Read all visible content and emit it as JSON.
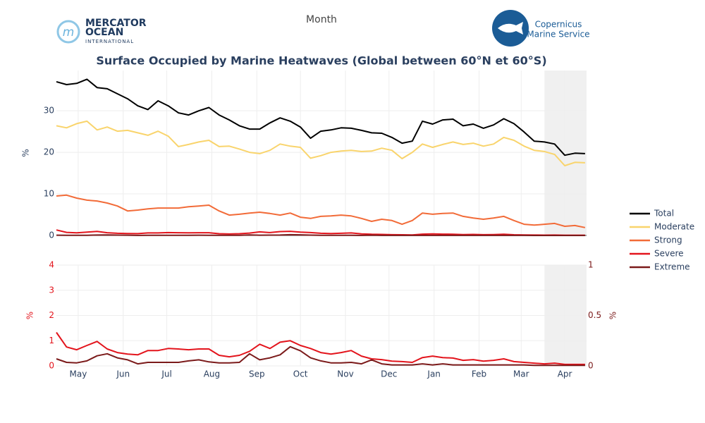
{
  "chart_data": {
    "type": "line",
    "title": "Surface Occupied by Marine Heatwaves (Global between 60°N et 60°S)",
    "xlabel": "Month",
    "x": [
      0,
      7,
      14,
      21,
      28,
      35,
      42,
      49,
      56,
      63,
      70,
      77,
      84,
      91,
      98,
      105,
      112,
      119,
      126,
      133,
      140,
      147,
      154,
      161,
      168,
      175,
      182,
      189,
      196,
      203,
      210,
      217,
      224,
      231,
      238,
      245,
      252,
      259,
      266,
      273,
      280,
      287,
      294,
      301,
      308,
      315,
      322,
      329,
      336,
      343,
      350,
      357,
      364
    ],
    "xlim": [
      0,
      365
    ],
    "xticks": [
      {
        "value": 15,
        "label": "May"
      },
      {
        "value": 46,
        "label": "Jun"
      },
      {
        "value": 76,
        "label": "Jul"
      },
      {
        "value": 107,
        "label": "Aug"
      },
      {
        "value": 138,
        "label": "Sep"
      },
      {
        "value": 168,
        "label": "Oct"
      },
      {
        "value": 199,
        "label": "Nov"
      },
      {
        "value": 229,
        "label": "Dec"
      },
      {
        "value": 260,
        "label": "Jan"
      },
      {
        "value": 291,
        "label": "Feb"
      },
      {
        "value": 320,
        "label": "Mar"
      },
      {
        "value": 350,
        "label": "Apr"
      }
    ],
    "ylabel": "%",
    "ylim": [
      0,
      39.7
    ],
    "yticks": [
      0,
      10,
      20,
      30
    ],
    "grid": true,
    "shaded_x": [
      336,
      365
    ],
    "legend": "right",
    "lower_panel": {
      "ylabel": "%",
      "ylim": [
        0,
        4
      ],
      "yticks": [
        0,
        1,
        2,
        3,
        4
      ],
      "y_color": "#e3141c",
      "y2label": "%",
      "y2lim": [
        0,
        1
      ],
      "y2ticks": [
        0,
        0.5,
        1
      ],
      "y2_color": "#7b1a1a"
    },
    "series": [
      {
        "name": "Total",
        "color": "#000000",
        "values": [
          37.0,
          36.3,
          36.6,
          37.6,
          35.6,
          35.3,
          34.1,
          32.9,
          31.2,
          30.3,
          32.4,
          31.2,
          29.5,
          29.0,
          30.0,
          30.8,
          29.0,
          27.8,
          26.4,
          25.6,
          25.6,
          27.1,
          28.3,
          27.5,
          26.1,
          23.4,
          25.1,
          25.4,
          25.9,
          25.8,
          25.3,
          24.7,
          24.6,
          23.6,
          22.2,
          22.7,
          27.5,
          26.8,
          27.8,
          28.0,
          26.4,
          26.8,
          25.8,
          26.6,
          28.1,
          26.9,
          24.9,
          22.7,
          22.5,
          22.0,
          19.3,
          19.8,
          19.7
        ]
      },
      {
        "name": "Moderate",
        "color": "#f9d46c",
        "values": [
          26.4,
          25.9,
          26.9,
          27.5,
          25.4,
          26.1,
          25.1,
          25.3,
          24.7,
          24.1,
          25.1,
          23.9,
          21.4,
          21.9,
          22.5,
          22.9,
          21.4,
          21.5,
          20.8,
          20.0,
          19.7,
          20.5,
          22.0,
          21.5,
          21.2,
          18.6,
          19.2,
          20.0,
          20.3,
          20.5,
          20.2,
          20.3,
          21.0,
          20.5,
          18.5,
          20.0,
          22.0,
          21.2,
          21.9,
          22.5,
          21.9,
          22.2,
          21.5,
          22.0,
          23.6,
          22.9,
          21.5,
          20.5,
          20.2,
          19.5,
          16.8,
          17.6,
          17.5
        ]
      },
      {
        "name": "Strong",
        "color": "#f26b38",
        "values": [
          9.5,
          9.7,
          9.0,
          8.5,
          8.3,
          7.8,
          7.1,
          5.9,
          6.1,
          6.4,
          6.6,
          6.6,
          6.6,
          6.9,
          7.1,
          7.3,
          5.9,
          4.9,
          5.1,
          5.4,
          5.6,
          5.3,
          4.9,
          5.4,
          4.4,
          4.1,
          4.6,
          4.7,
          4.9,
          4.7,
          4.1,
          3.4,
          3.9,
          3.6,
          2.7,
          3.6,
          5.4,
          5.1,
          5.3,
          5.4,
          4.6,
          4.2,
          3.9,
          4.2,
          4.6,
          3.6,
          2.7,
          2.5,
          2.7,
          2.9,
          2.2,
          2.4,
          1.9
        ]
      },
      {
        "name": "Severe",
        "color": "#e3141c",
        "lower_axis": "y",
        "values": [
          1.33,
          0.75,
          0.64,
          0.81,
          0.97,
          0.67,
          0.53,
          0.47,
          0.44,
          0.61,
          0.61,
          0.69,
          0.67,
          0.64,
          0.67,
          0.67,
          0.42,
          0.36,
          0.42,
          0.58,
          0.86,
          0.69,
          0.94,
          1.0,
          0.81,
          0.69,
          0.53,
          0.47,
          0.53,
          0.61,
          0.39,
          0.28,
          0.25,
          0.19,
          0.17,
          0.14,
          0.33,
          0.39,
          0.33,
          0.31,
          0.22,
          0.25,
          0.19,
          0.22,
          0.28,
          0.17,
          0.14,
          0.11,
          0.08,
          0.11,
          0.06,
          0.06,
          0.06
        ]
      },
      {
        "name": "Extreme",
        "color": "#7b1a1a",
        "lower_axis": "y2",
        "values": [
          0.07,
          0.035,
          0.03,
          0.05,
          0.1,
          0.12,
          0.08,
          0.06,
          0.02,
          0.035,
          0.035,
          0.035,
          0.035,
          0.05,
          0.06,
          0.04,
          0.03,
          0.03,
          0.035,
          0.12,
          0.06,
          0.08,
          0.11,
          0.19,
          0.15,
          0.08,
          0.05,
          0.03,
          0.03,
          0.035,
          0.02,
          0.06,
          0.02,
          0.01,
          0.01,
          0.01,
          0.02,
          0.01,
          0.02,
          0.01,
          0.01,
          0.01,
          0.01,
          0.01,
          0.01,
          0.01,
          0.01,
          0.005,
          0.005,
          0.005,
          0.005,
          0.005,
          0.005
        ]
      }
    ]
  },
  "logos": {
    "mercator": [
      "MERCATOR",
      "OCEAN",
      "INTERNATIONAL"
    ],
    "copernicus": [
      "Copernicus",
      "Marine Service"
    ]
  }
}
